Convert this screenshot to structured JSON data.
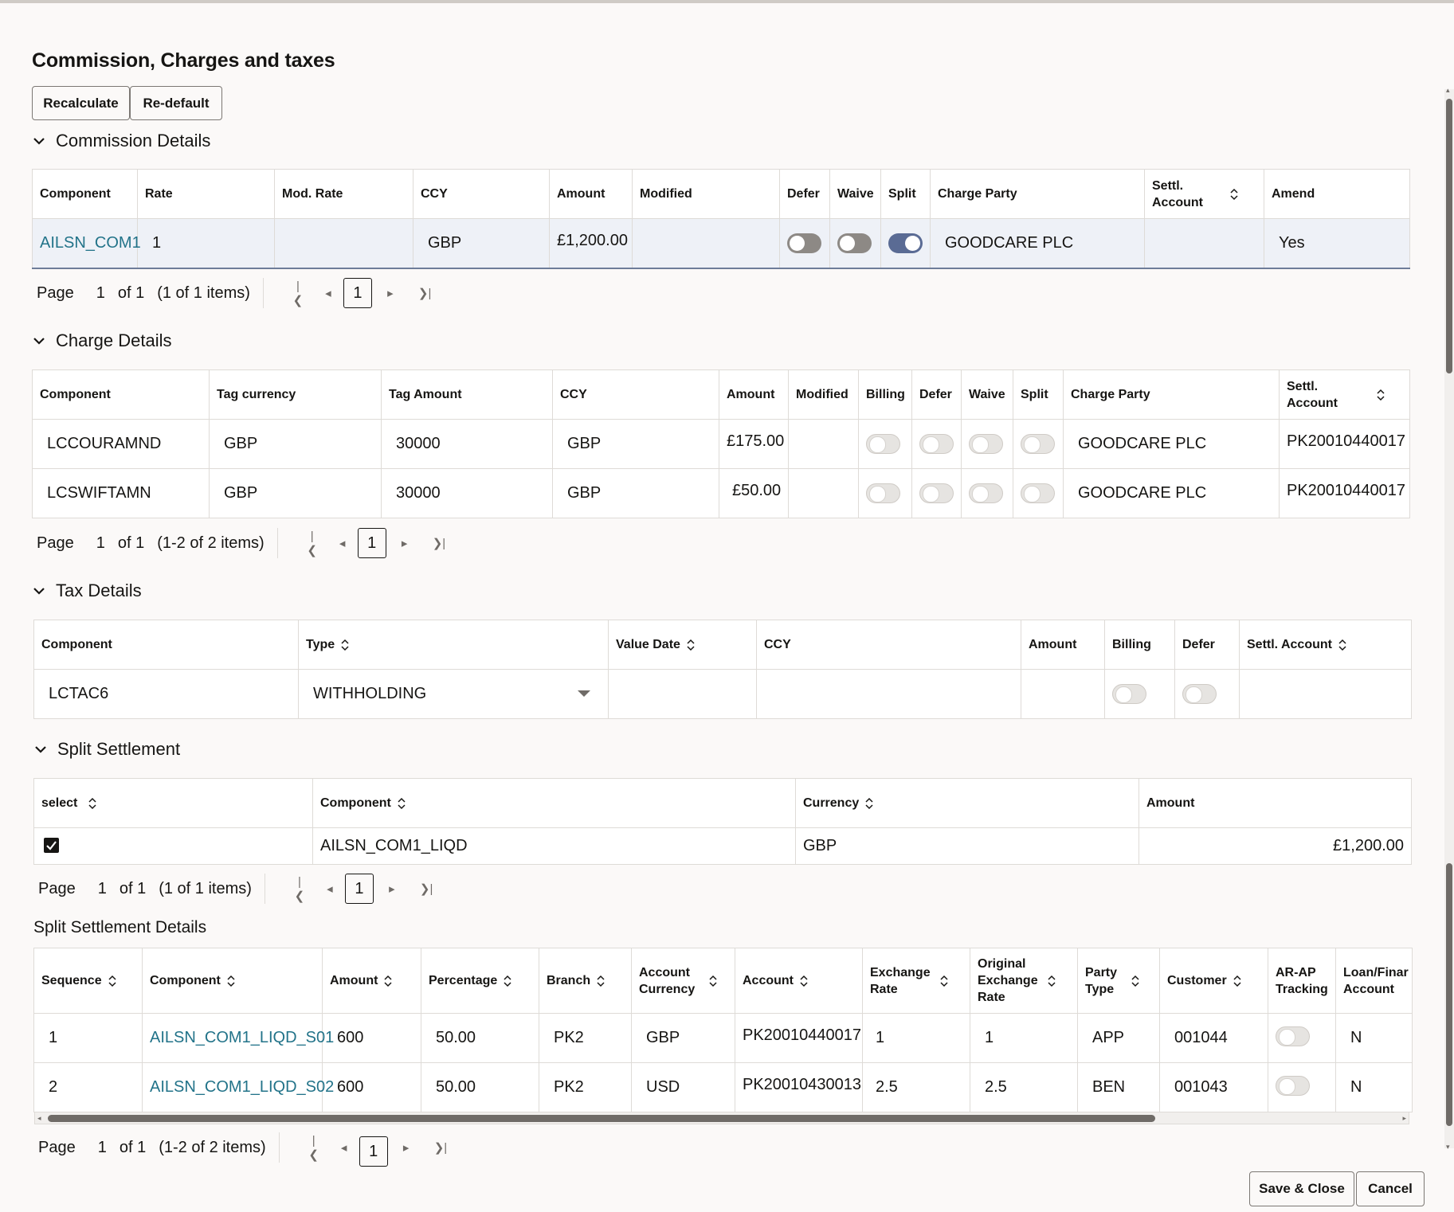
{
  "title": "Commission, Charges and taxes",
  "buttons": {
    "recalculate": "Recalculate",
    "redefault": "Re-default",
    "save_close": "Save & Close",
    "cancel": "Cancel"
  },
  "commission": {
    "section_title": "Commission Details",
    "headers": [
      "Component",
      "Rate",
      "Mod. Rate",
      "CCY",
      "Amount",
      "Modified",
      "Defer",
      "Waive",
      "Split",
      "Charge Party",
      "Settl. Account",
      "Amend"
    ],
    "row": {
      "component": "AILSN_COM1",
      "rate": "1",
      "mod_rate": "",
      "ccy": "GBP",
      "amount": "£1,200.00",
      "modified": "",
      "defer": false,
      "waive": false,
      "split": true,
      "charge_party": "GOODCARE PLC",
      "settl_account": "",
      "amend": "Yes"
    },
    "pager": {
      "page_label": "Page",
      "page": "1",
      "of": "of 1",
      "items": "(1 of 1 items)",
      "current": "1"
    }
  },
  "charges": {
    "section_title": "Charge Details",
    "headers": [
      "Component",
      "Tag currency",
      "Tag Amount",
      "CCY",
      "Amount",
      "Modified",
      "Billing",
      "Defer",
      "Waive",
      "Split",
      "Charge Party",
      "Settl. Account"
    ],
    "rows": [
      {
        "component": "LCCOURAMND",
        "tag_currency": "GBP",
        "tag_amount": "30000",
        "ccy": "GBP",
        "amount": "£175.00",
        "modified": "",
        "charge_party": "GOODCARE PLC",
        "settl_account": "PK20010440017"
      },
      {
        "component": "LCSWIFTAMN",
        "tag_currency": "GBP",
        "tag_amount": "30000",
        "ccy": "GBP",
        "amount": "£50.00",
        "modified": "",
        "charge_party": "GOODCARE PLC",
        "settl_account": "PK20010440017"
      }
    ],
    "pager": {
      "page_label": "Page",
      "page": "1",
      "of": "of 1",
      "items": "(1-2 of 2 items)",
      "current": "1"
    }
  },
  "tax": {
    "section_title": "Tax Details",
    "headers": [
      "Component",
      "Type",
      "Value Date",
      "CCY",
      "Amount",
      "Billing",
      "Defer",
      "Settl. Account"
    ],
    "row": {
      "component": "LCTAC6",
      "type": "WITHHOLDING",
      "value_date": "",
      "ccy": "",
      "amount": "",
      "settl_account": ""
    }
  },
  "split": {
    "section_title": "Split Settlement",
    "headers": [
      "select",
      "Component",
      "Currency",
      "Amount"
    ],
    "row": {
      "selected": true,
      "component": "AILSN_COM1_LIQD",
      "currency": "GBP",
      "amount": "£1,200.00"
    },
    "pager": {
      "page_label": "Page",
      "page": "1",
      "of": "of 1",
      "items": "(1 of 1 items)",
      "current": "1"
    }
  },
  "split_details": {
    "section_title": "Split Settlement Details",
    "headers": [
      "Sequence",
      "Component",
      "Amount",
      "Percentage",
      "Branch",
      "Account Currency",
      "Account",
      "Exchange Rate",
      "Original Exchange Rate",
      "Party Type",
      "Customer",
      "AR-AP Tracking",
      "Loan/Finar Account"
    ],
    "rows": [
      {
        "sequence": "1",
        "component": "AILSN_COM1_LIQD_S01",
        "amount": "600",
        "percentage": "50.00",
        "branch": "PK2",
        "account_currency": "GBP",
        "account": "PK20010440017",
        "exchange_rate": "1",
        "orig_exchange_rate": "1",
        "party_type": "APP",
        "customer": "001044",
        "loan_account": "N"
      },
      {
        "sequence": "2",
        "component": "AILSN_COM1_LIQD_S02",
        "amount": "600",
        "percentage": "50.00",
        "branch": "PK2",
        "account_currency": "USD",
        "account": "PK20010430013",
        "exchange_rate": "2.5",
        "orig_exchange_rate": "2.5",
        "party_type": "BEN",
        "customer": "001043",
        "loan_account": "N"
      }
    ],
    "pager": {
      "page_label": "Page",
      "page": "1",
      "of": "of 1",
      "items": "(1-2 of 2 items)",
      "current": "1"
    }
  },
  "icons": {
    "collapse": "chevron-down-icon",
    "sort": "sort-icon",
    "first": "first-page-icon",
    "prev": "prev-page-icon",
    "next": "next-page-icon",
    "last": "last-page-icon",
    "dropdown": "caret-down-icon",
    "check": "checkmark-icon"
  },
  "colors": {
    "link": "#227389",
    "toggle_on": "#5a6b94",
    "toggle_off": "#8d8985",
    "selected_row": "#eef1f7"
  }
}
